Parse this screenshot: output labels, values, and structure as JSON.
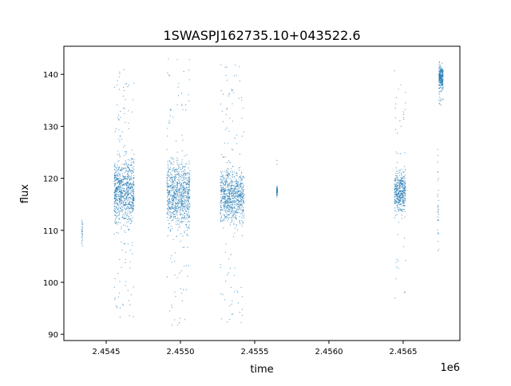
{
  "chart_data": {
    "type": "scatter",
    "title": "1SWASPJ162735.10+043522.6",
    "xlabel": "time",
    "ylabel": "flux",
    "x_offset_label": "1e6",
    "xlim": [
      2454215,
      2456882
    ],
    "ylim": [
      88.8,
      145.4
    ],
    "xticks": [
      2454500,
      2455000,
      2455500,
      2456000,
      2456500
    ],
    "xtick_labels": [
      "2.4545",
      "2.4550",
      "2.4555",
      "2.4560",
      "2.4565"
    ],
    "yticks": [
      90,
      100,
      110,
      120,
      130,
      140
    ],
    "ytick_labels": [
      "90",
      "100",
      "110",
      "120",
      "130",
      "140"
    ],
    "grid": false,
    "color": "#1f77b4",
    "clusters": [
      {
        "x": [
          2454335,
          2454342
        ],
        "core": [
          105,
          113
        ],
        "outliers": [
          105,
          113
        ],
        "n": 25
      },
      {
        "x": [
          2454554,
          2454688
        ],
        "core": [
          109,
          126
        ],
        "outliers": [
          93,
          142
        ],
        "n": 900
      },
      {
        "x": [
          2454909,
          2455064
        ],
        "core": [
          108,
          126
        ],
        "outliers": [
          91,
          143
        ],
        "n": 900
      },
      {
        "x": [
          2455269,
          2455430
        ],
        "core": [
          109,
          124
        ],
        "outliers": [
          92,
          143
        ],
        "n": 850
      },
      {
        "x": [
          2455648,
          2455653
        ],
        "core": [
          116,
          119
        ],
        "outliers": [
          115,
          124
        ],
        "n": 60
      },
      {
        "x": [
          2456441,
          2456516
        ],
        "core": [
          112,
          123
        ],
        "outliers": [
          97,
          141
        ],
        "n": 450
      },
      {
        "x": [
          2456731,
          2456740
        ],
        "core": [
          100,
          128
        ],
        "outliers": [
          100,
          136
        ],
        "n": 30
      },
      {
        "x": [
          2456740,
          2456769
        ],
        "core": [
          136,
          143
        ],
        "outliers": [
          134,
          143
        ],
        "n": 250
      }
    ]
  }
}
